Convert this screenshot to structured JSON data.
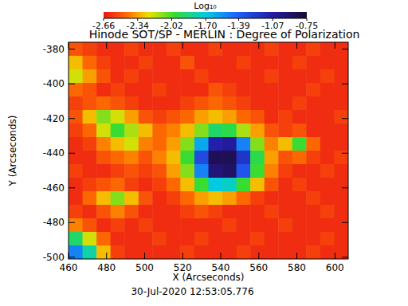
{
  "chart_data": {
    "type": "heatmap",
    "title": "Hinode SOT/SP - MERLIN : Degree of Polarization",
    "x_label": "X (Arcseconds)",
    "y_label": "Y (Arcseconds)",
    "annotation": "30-Jul-2020 12:53:05.776",
    "xlim": [
      460,
      607
    ],
    "ylim": [
      -501,
      -376
    ],
    "xticks": [
      460,
      480,
      500,
      520,
      540,
      560,
      580,
      600
    ],
    "yticks": [
      -380,
      -400,
      -420,
      -440,
      -460,
      -480,
      -500
    ],
    "colorbar": {
      "title": "Log₁₀",
      "range": [
        -2.66,
        -0.75
      ],
      "ticks": [
        -2.66,
        -2.34,
        -2.02,
        {
          "value": -1.7,
          "label": "-1.70"
        },
        -1.39,
        -1.07,
        -0.75
      ]
    },
    "z": [
      [
        -2.5,
        -2.55,
        -2.6,
        -2.6,
        -2.55,
        -2.6,
        -2.6,
        -2.55,
        -2.6,
        -2.6,
        -2.55,
        -2.6,
        -2.6,
        -2.6,
        -2.55,
        -2.6,
        -2.6,
        -2.55,
        -2.6,
        -2.6
      ],
      [
        -2.3,
        -2.45,
        -2.55,
        -2.6,
        -2.6,
        -2.55,
        -2.6,
        -2.6,
        -2.5,
        -2.6,
        -2.6,
        -2.6,
        -2.55,
        -2.6,
        -2.6,
        -2.6,
        -2.55,
        -2.6,
        -2.6,
        -2.6
      ],
      [
        -2.2,
        -2.35,
        -2.5,
        -2.6,
        -2.55,
        -2.6,
        -2.6,
        -2.6,
        -2.6,
        -2.55,
        -2.6,
        -2.6,
        -2.6,
        -2.6,
        -2.55,
        -2.6,
        -2.6,
        -2.6,
        -2.55,
        -2.6
      ],
      [
        -2.45,
        -2.5,
        -2.6,
        -2.55,
        -2.6,
        -2.6,
        -2.55,
        -2.6,
        -2.6,
        -2.6,
        -2.5,
        -2.55,
        -2.6,
        -2.6,
        -2.6,
        -2.6,
        -2.6,
        -2.55,
        -2.6,
        -2.6
      ],
      [
        -2.55,
        -2.5,
        -2.45,
        -2.5,
        -2.55,
        -2.6,
        -2.6,
        -2.6,
        -2.55,
        -2.5,
        -2.45,
        -2.5,
        -2.55,
        -2.6,
        -2.6,
        -2.6,
        -2.55,
        -2.6,
        -2.6,
        -2.6
      ],
      [
        -2.5,
        -2.3,
        -2.1,
        -2.2,
        -2.35,
        -2.5,
        -2.55,
        -2.5,
        -2.45,
        -2.35,
        -2.3,
        -2.35,
        -2.45,
        -2.5,
        -2.6,
        -2.55,
        -2.6,
        -2.6,
        -2.6,
        -2.55
      ],
      [
        -2.55,
        -2.45,
        -2.2,
        -2.0,
        -2.15,
        -2.3,
        -2.45,
        -2.4,
        -2.3,
        -2.1,
        -1.9,
        -1.95,
        -2.15,
        -2.35,
        -2.5,
        -2.55,
        -2.5,
        -2.6,
        -2.6,
        -2.6
      ],
      [
        -2.6,
        -2.55,
        -2.4,
        -2.3,
        -2.2,
        -2.4,
        -2.45,
        -2.35,
        -2.1,
        -1.6,
        -1.1,
        -1.05,
        -1.5,
        -2.1,
        -2.4,
        -2.3,
        -2.0,
        -2.45,
        -2.6,
        -2.6
      ],
      [
        -2.6,
        -2.6,
        -2.5,
        -2.45,
        -2.4,
        -2.5,
        -2.4,
        -2.3,
        -2.0,
        -1.3,
        -0.85,
        -0.85,
        -1.2,
        -1.95,
        -2.35,
        -2.5,
        -2.45,
        -2.55,
        -2.6,
        -2.55
      ],
      [
        -2.55,
        -2.6,
        -2.6,
        -2.55,
        -2.5,
        -2.55,
        -2.5,
        -2.35,
        -2.1,
        -1.5,
        -0.95,
        -0.9,
        -1.35,
        -2.0,
        -2.4,
        -2.55,
        -2.6,
        -2.6,
        -2.55,
        -2.6
      ],
      [
        -2.6,
        -2.55,
        -2.5,
        -2.45,
        -2.55,
        -2.6,
        -2.55,
        -2.45,
        -2.3,
        -2.0,
        -1.7,
        -1.75,
        -2.0,
        -2.3,
        -2.5,
        -2.6,
        -2.55,
        -2.6,
        -2.6,
        -2.6
      ],
      [
        -2.6,
        -2.45,
        -2.3,
        -2.1,
        -2.3,
        -2.5,
        -2.6,
        -2.55,
        -2.45,
        -2.35,
        -2.3,
        -2.35,
        -2.45,
        -2.55,
        -2.6,
        -2.6,
        -2.6,
        -2.55,
        -2.6,
        -2.6
      ],
      [
        -2.55,
        -2.6,
        -2.5,
        -2.4,
        -2.5,
        -2.6,
        -2.6,
        -2.6,
        -2.55,
        -2.5,
        -2.55,
        -2.6,
        -2.6,
        -2.6,
        -2.55,
        -2.6,
        -2.6,
        -2.6,
        -2.55,
        -2.6
      ],
      [
        -2.4,
        -2.5,
        -2.6,
        -2.55,
        -2.6,
        -2.55,
        -2.6,
        -2.6,
        -2.6,
        -2.6,
        -2.6,
        -2.55,
        -2.6,
        -2.6,
        -2.6,
        -2.55,
        -2.6,
        -2.6,
        -2.6,
        -2.6
      ],
      [
        -1.9,
        -2.2,
        -2.45,
        -2.6,
        -2.6,
        -2.6,
        -2.55,
        -2.6,
        -2.6,
        -2.55,
        -2.6,
        -2.6,
        -2.6,
        -2.55,
        -2.6,
        -2.6,
        -2.6,
        -2.6,
        -2.55,
        -2.6
      ],
      [
        -1.5,
        -1.8,
        -2.3,
        -2.55,
        -2.6,
        -2.6,
        -2.6,
        -2.6,
        -2.55,
        -2.6,
        -2.6,
        -2.6,
        -2.55,
        -2.6,
        -2.6,
        -2.6,
        -2.6,
        -2.55,
        -2.6,
        -2.6
      ]
    ]
  }
}
